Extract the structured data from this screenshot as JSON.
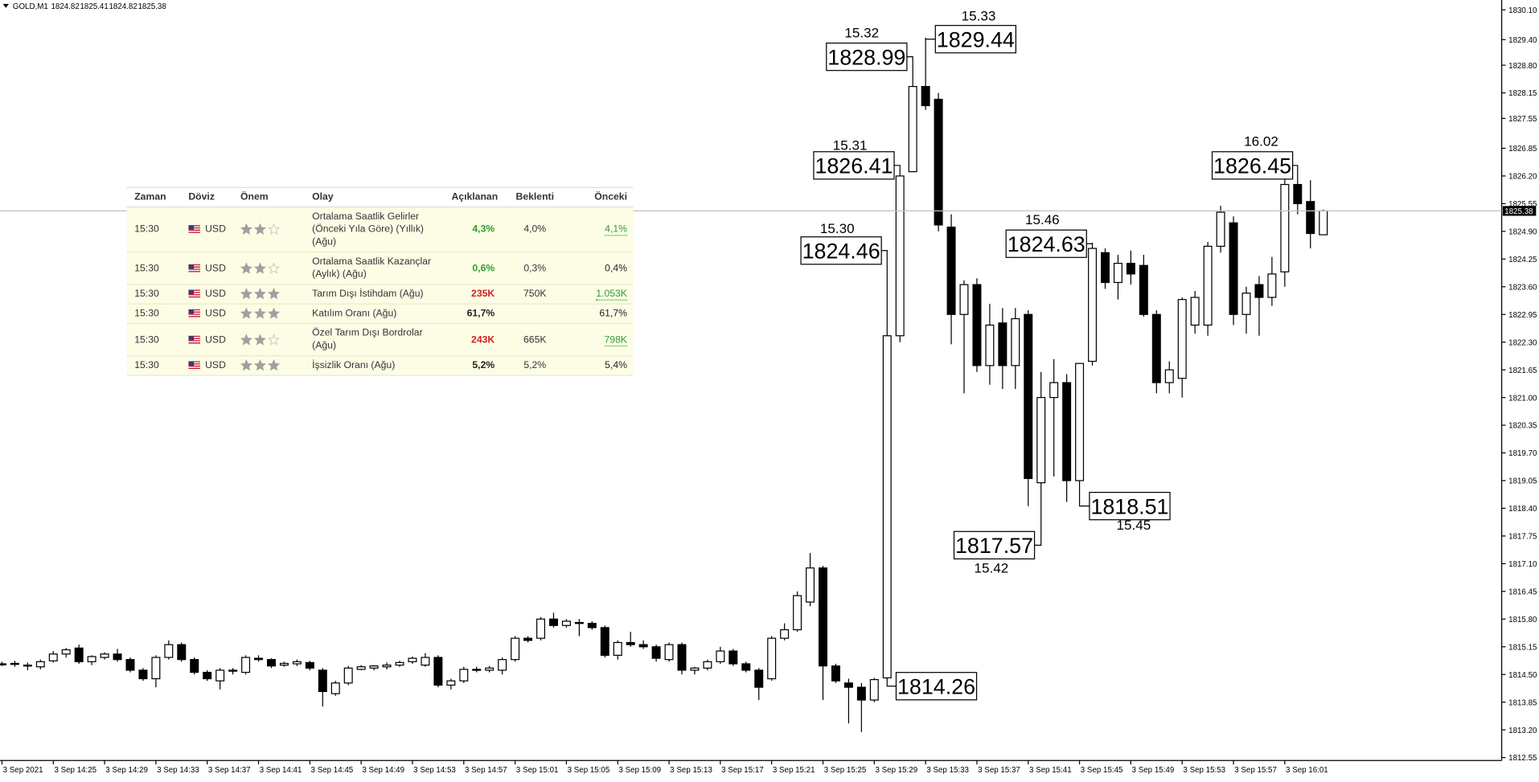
{
  "chart_data": {
    "type": "candlestick",
    "symbol": "GOLD,M1",
    "categories": [
      "3 Sep 2021",
      null,
      null,
      null,
      "3 Sep 14:25",
      null,
      null,
      null,
      "3 Sep 14:29",
      null,
      null,
      null,
      "3 Sep 14:33",
      null,
      null,
      null,
      "3 Sep 14:37",
      null,
      null,
      null,
      "3 Sep 14:41",
      null,
      null,
      null,
      "3 Sep 14:45",
      null,
      null,
      null,
      "3 Sep 14:49",
      null,
      null,
      null,
      "3 Sep 14:53",
      null,
      null,
      null,
      "3 Sep 14:57",
      null,
      null,
      null,
      "3 Sep 15:01",
      null,
      null,
      null,
      "3 Sep 15:05",
      null,
      null,
      null,
      "3 Sep 15:09",
      null,
      null,
      null,
      "3 Sep 15:13",
      null,
      null,
      null,
      "3 Sep 15:17",
      null,
      null,
      null,
      "3 Sep 15:21",
      null,
      null,
      null,
      "3 Sep 15:25",
      null,
      null,
      null,
      "3 Sep 15:29",
      null,
      null,
      null,
      "3 Sep 15:33",
      null,
      null,
      null,
      "3 Sep 15:37",
      null,
      null,
      null,
      "3 Sep 15:41",
      null,
      null,
      null,
      "3 Sep 15:45",
      null,
      null,
      null,
      "3 Sep 15:49",
      null,
      null,
      null,
      "3 Sep 15:53",
      null,
      null,
      null,
      "3 Sep 15:57",
      null,
      null,
      null,
      "3 Sep 16:01",
      null,
      null,
      null
    ],
    "open": [
      1814.75,
      1814.74,
      1814.72,
      1814.68,
      1814.82,
      1814.98,
      1815.12,
      1814.8,
      1814.9,
      1814.98,
      1814.85,
      1814.6,
      1814.4,
      1814.9,
      1815.2,
      1814.85,
      1814.55,
      1814.35,
      1814.6,
      1814.55,
      1814.88,
      1814.85,
      1814.72,
      1814.75,
      1814.78,
      1814.6,
      1814.05,
      1814.3,
      1814.62,
      1814.65,
      1814.68,
      1814.72,
      1814.8,
      1814.72,
      1814.9,
      1814.25,
      1814.35,
      1814.62,
      1814.6,
      1814.6,
      1814.85,
      1815.35,
      1815.35,
      1815.8,
      1815.65,
      1815.72,
      1815.7,
      1815.6,
      1814.95,
      1815.25,
      1815.2,
      1815.15,
      1814.85,
      1815.2,
      1814.6,
      1814.65,
      1814.8,
      1815.05,
      1814.75,
      1814.6,
      1814.4,
      1815.35,
      1815.55,
      1816.2,
      1817,
      1814.7,
      1814.3,
      1814.2,
      1813.9,
      1814.42,
      1822.45,
      1826.3,
      1828.3,
      1828,
      1825,
      1822.95,
      1823.65,
      1821.75,
      1822.75,
      1821.75,
      1822.95,
      1819,
      1821,
      1821.35,
      1819.05,
      1821.85,
      1824.4,
      1823.7,
      1824.15,
      1824.1,
      1822.95,
      1821.35,
      1821.45,
      1822.7,
      1822.7,
      1824.55,
      1825.1,
      1822.95,
      1823.65,
      1823.35,
      1823.95,
      1826,
      1825.6,
      1824.82
    ],
    "high": [
      1814.8,
      1814.82,
      1814.78,
      1814.85,
      1815.05,
      1815.12,
      1815.2,
      1814.95,
      1815.02,
      1815.1,
      1814.9,
      1814.65,
      1814.95,
      1815.3,
      1815.25,
      1814.9,
      1814.6,
      1814.65,
      1814.65,
      1814.95,
      1814.95,
      1814.88,
      1814.8,
      1814.85,
      1814.82,
      1814.65,
      1814.35,
      1814.7,
      1814.72,
      1814.72,
      1814.78,
      1814.82,
      1814.92,
      1815,
      1814.95,
      1814.4,
      1814.68,
      1814.68,
      1814.7,
      1814.9,
      1815.4,
      1815.4,
      1815.85,
      1815.95,
      1815.8,
      1815.8,
      1815.75,
      1815.65,
      1815.3,
      1815.5,
      1815.3,
      1815.2,
      1815.25,
      1815.25,
      1814.68,
      1814.85,
      1815.15,
      1815.1,
      1814.8,
      1814.65,
      1815.4,
      1815.7,
      1816.45,
      1817.35,
      1817.05,
      1814.75,
      1814.4,
      1814.3,
      1814.42,
      1824.46,
      1826.41,
      1828.99,
      1829.44,
      1828.15,
      1825.3,
      1823.75,
      1823.8,
      1823.2,
      1823.1,
      1823.1,
      1823.05,
      1821.6,
      1821.9,
      1821.55,
      1821.8,
      1824.63,
      1824.5,
      1824.35,
      1824.45,
      1824.35,
      1823.05,
      1821.85,
      1823.35,
      1823.5,
      1824.65,
      1825.5,
      1825.25,
      1823.6,
      1823.85,
      1824.3,
      1826.25,
      1826.45,
      1826.1,
      1825.41
    ],
    "low": [
      1814.7,
      1814.68,
      1814.6,
      1814.62,
      1814.78,
      1814.9,
      1814.75,
      1814.72,
      1814.85,
      1814.8,
      1814.55,
      1814.35,
      1814.2,
      1814.85,
      1814.8,
      1814.5,
      1814.35,
      1814.15,
      1814.5,
      1814.5,
      1814.8,
      1814.65,
      1814.68,
      1814.7,
      1814.6,
      1813.75,
      1814,
      1814.25,
      1814.6,
      1814.6,
      1814.62,
      1814.68,
      1814.75,
      1814.68,
      1814.2,
      1814.15,
      1814.3,
      1814.55,
      1814.55,
      1814.5,
      1814.8,
      1815.25,
      1815.3,
      1815.6,
      1815.6,
      1815.4,
      1815.55,
      1814.9,
      1814.85,
      1815.15,
      1815.1,
      1814.8,
      1814.8,
      1814.5,
      1814.5,
      1814.6,
      1814.75,
      1814.7,
      1814.55,
      1813.9,
      1814.35,
      1815.3,
      1815.5,
      1816.1,
      1813.9,
      1814.3,
      1813.35,
      1813.15,
      1813.85,
      1814.26,
      1822.3,
      1826.3,
      1827.75,
      1824.9,
      1822.25,
      1821.1,
      1821.6,
      1821.3,
      1821.2,
      1821.2,
      1818.45,
      1817.57,
      1819.15,
      1818.55,
      1818.51,
      1821.75,
      1823.55,
      1823.3,
      1823.65,
      1822.9,
      1821.1,
      1821.1,
      1821,
      1822.5,
      1822.45,
      1824.4,
      1822.7,
      1822.5,
      1822.45,
      1823.15,
      1823.6,
      1825.3,
      1824.5,
      1824.82
    ],
    "close": [
      1814.75,
      1814.76,
      1814.7,
      1814.8,
      1814.98,
      1815.08,
      1814.8,
      1814.92,
      1814.98,
      1814.85,
      1814.6,
      1814.4,
      1814.9,
      1815.2,
      1814.85,
      1814.55,
      1814.4,
      1814.6,
      1814.58,
      1814.9,
      1814.85,
      1814.7,
      1814.76,
      1814.8,
      1814.65,
      1814.1,
      1814.3,
      1814.65,
      1814.68,
      1814.7,
      1814.72,
      1814.78,
      1814.88,
      1814.9,
      1814.25,
      1814.35,
      1814.62,
      1814.6,
      1814.65,
      1814.85,
      1815.35,
      1815.3,
      1815.8,
      1815.65,
      1815.75,
      1815.7,
      1815.6,
      1814.95,
      1815.25,
      1815.2,
      1815.15,
      1814.88,
      1815.2,
      1814.6,
      1814.65,
      1814.8,
      1815.05,
      1814.75,
      1814.6,
      1814.2,
      1815.35,
      1815.55,
      1816.35,
      1817,
      1814.7,
      1814.35,
      1814.2,
      1813.9,
      1814.38,
      1822.45,
      1826.2,
      1828.3,
      1827.85,
      1825.05,
      1822.95,
      1823.65,
      1821.75,
      1822.7,
      1821.75,
      1822.85,
      1819.1,
      1821,
      1821.35,
      1819.05,
      1821.8,
      1824.5,
      1823.7,
      1824.15,
      1823.9,
      1822.95,
      1821.35,
      1821.65,
      1823.3,
      1823.35,
      1824.55,
      1825.35,
      1822.95,
      1823.45,
      1823.35,
      1823.9,
      1826,
      1825.55,
      1824.85,
      1825.38
    ],
    "up_color": "#ffffff",
    "down_color": "#000000",
    "price_line": true,
    "ylim": [
      1812.48,
      1830.33
    ],
    "yticks": [
      {
        "value": 1830.1,
        "label": "1830.10"
      },
      {
        "value": 1829.4,
        "label": "1829.40"
      },
      {
        "value": 1828.8,
        "label": "1828.80"
      },
      1828.15,
      1827.55,
      1826.85,
      {
        "value": 1826.2,
        "label": "1826.20"
      },
      1825.55,
      {
        "value": 1824.9,
        "label": "1824.90"
      },
      1824.25,
      {
        "value": 1823.6,
        "label": "1823.60"
      },
      1822.95,
      {
        "value": 1822.3,
        "label": "1822.30"
      },
      1821.65,
      {
        "value": 1821,
        "label": "1821.00"
      },
      1820.35,
      {
        "value": 1819.7,
        "label": "1819.70"
      },
      1819.05,
      {
        "value": 1818.4,
        "label": "1818.40"
      },
      1817.75,
      {
        "value": 1817.1,
        "label": "1817.10"
      },
      1816.45,
      {
        "value": 1815.8,
        "label": "1815.80"
      },
      1815.15,
      {
        "value": 1814.5,
        "label": "1814.50"
      },
      1813.85,
      {
        "value": 1813.2,
        "label": "1813.20"
      },
      1812.55
    ],
    "annotations": [
      {
        "time": "15.30",
        "price": 1824.46
      },
      {
        "time": "15.31",
        "price": 1826.41
      },
      {
        "time": "15.32",
        "price": 1828.99
      },
      {
        "time": "15.33",
        "price": 1829.44
      },
      {
        "price": 1814.26
      },
      {
        "time": "15.42",
        "price": 1817.57
      },
      {
        "time": "15.45",
        "price": 1818.51
      },
      {
        "time": "15.46",
        "price": 1824.63
      },
      {
        "time": "16.02",
        "price": 1826.45
      }
    ]
  },
  "table": {
    "columns": [
      "Zaman",
      "Döviz",
      "Önem",
      "Olay",
      "Açıklanan",
      "Beklenti",
      "Önceki"
    ],
    "rows": [
      {
        "time": "15:30",
        "currency": "USD",
        "importance": 2,
        "event": "Ortalama Saatlik Gelirler (Önceki Yıla Göre) (Yıllık) (Ağu)",
        "actual": "4,3%",
        "actual_color": "#2e9e2e",
        "forecast": "4,0%",
        "previous": "4,1%",
        "previous_color": "#2e9e2e"
      },
      {
        "time": "15:30",
        "currency": "USD",
        "importance": 2,
        "event": "Ortalama Saatlik Kazançlar (Aylık) (Ağu)",
        "actual": "0,6%",
        "actual_color": "#2e9e2e",
        "forecast": "0,3%",
        "previous": "0,4%",
        "previous_color": "#222222"
      },
      {
        "time": "15:30",
        "currency": "USD",
        "importance": 3,
        "event": "Tarım Dışı İstihdam (Ağu)",
        "actual": "235K",
        "actual_color": "#d22121",
        "forecast": "750K",
        "previous": "1.053K",
        "previous_color": "#2e9e2e"
      },
      {
        "time": "15:30",
        "currency": "USD",
        "importance": 3,
        "event": "Katılım Oranı (Ağu)",
        "actual": "61,7%",
        "actual_color": "#222222",
        "forecast": null,
        "previous": "61,7%",
        "previous_color": "#222222"
      },
      {
        "time": "15:30",
        "currency": "USD",
        "importance": 2,
        "event": "Özel Tarım Dışı Bordrolar (Ağu)",
        "actual": "243K",
        "actual_color": "#d22121",
        "forecast": "665K",
        "previous": "798K",
        "previous_color": "#2e9e2e"
      },
      {
        "time": "15:30",
        "currency": "USD",
        "importance": 3,
        "event": "İşsizlik Oranı (Ağu)",
        "actual": "5,2%",
        "actual_color": "#222222",
        "forecast": "5,2%",
        "previous": "5,4%",
        "previous_color": "#222222"
      }
    ]
  }
}
